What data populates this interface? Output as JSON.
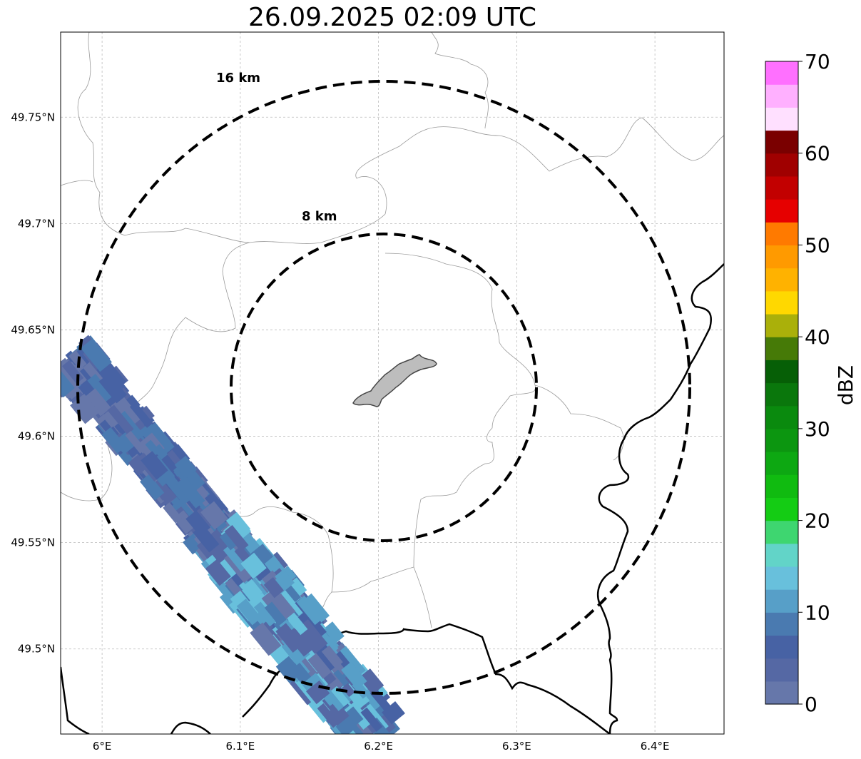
{
  "title": "26.09.2025 02:09 UTC",
  "chart_data": {
    "type": "radar-map",
    "title": "26.09.2025 02:09 UTC",
    "lon_range": [
      5.97,
      6.45
    ],
    "lat_range": [
      49.46,
      49.79
    ],
    "x_ticks": [
      {
        "value": 6.0,
        "label": "6°E"
      },
      {
        "value": 6.1,
        "label": "6.1°E"
      },
      {
        "value": 6.2,
        "label": "6.2°E"
      },
      {
        "value": 6.3,
        "label": "6.3°E"
      },
      {
        "value": 6.4,
        "label": "6.4°E"
      }
    ],
    "y_ticks": [
      {
        "value": 49.5,
        "label": "49.5°N"
      },
      {
        "value": 49.55,
        "label": "49.55°N"
      },
      {
        "value": 49.6,
        "label": "49.6°N"
      },
      {
        "value": 49.65,
        "label": "49.65°N"
      },
      {
        "value": 49.7,
        "label": "49.7°N"
      },
      {
        "value": 49.75,
        "label": "49.75°N"
      }
    ],
    "grid": true,
    "center": {
      "lon": 6.203,
      "lat": 49.623
    },
    "range_rings": [
      {
        "radius_km": 8,
        "label": "8 km"
      },
      {
        "radius_km": 16,
        "label": "16 km"
      }
    ],
    "colorbar": {
      "label": "dBZ",
      "min": 0,
      "max": 70,
      "step": 2.5,
      "tick_values": [
        0,
        10,
        20,
        30,
        40,
        50,
        60,
        70
      ],
      "tick_labels": [
        "0",
        "10",
        "20",
        "30",
        "40",
        "50",
        "60",
        "70"
      ],
      "colors": [
        "#6677aa",
        "#5568a4",
        "#4762a4",
        "#4a7ab0",
        "#579fc8",
        "#68c0dc",
        "#62d4c8",
        "#3ed670",
        "#14cc14",
        "#10bb10",
        "#0da812",
        "#0c9610",
        "#0a8a0e",
        "#0a770c",
        "#065f06",
        "#467a07",
        "#aab00a",
        "#ffd800",
        "#ffb200",
        "#ff9a00",
        "#ff7a00",
        "#e60000",
        "#c20000",
        "#a00000",
        "#7a0000",
        "#ffe0ff",
        "#ffb0ff",
        "#ff70ff",
        "#f032f0"
      ]
    },
    "echo_band": {
      "description": "NW-SE oriented band of weak reflectivity",
      "from": {
        "lon": 5.98,
        "lat": 49.635
      },
      "to": {
        "lon": 6.2,
        "lat": 49.46
      },
      "dbz_range": [
        0,
        15
      ]
    }
  }
}
